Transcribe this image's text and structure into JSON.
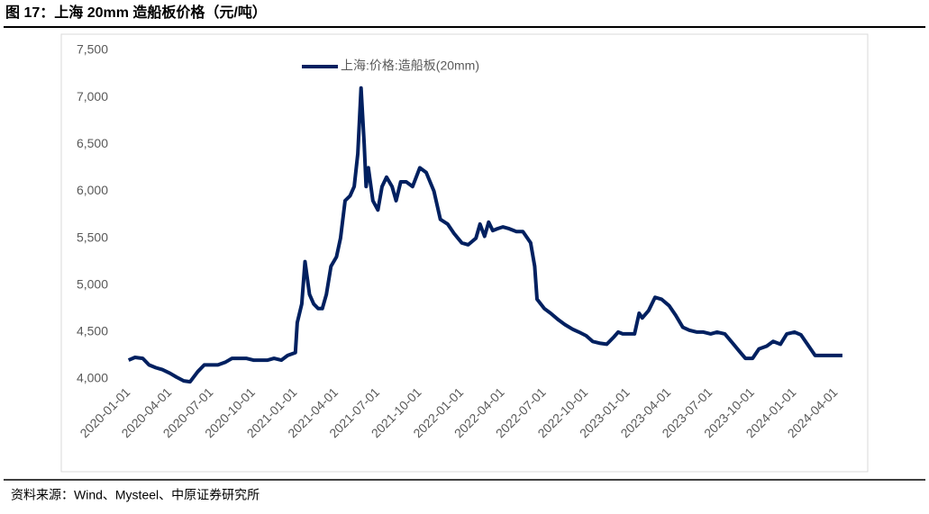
{
  "chart_data": {
    "type": "line",
    "title": "图 17：上海 20mm 造船板价格（元/吨）",
    "source": "资料来源：Wind、Mysteel、中原证券研究所",
    "x": [
      "2020-01-01",
      "2020-01-15",
      "2020-02-01",
      "2020-02-15",
      "2020-03-01",
      "2020-03-15",
      "2020-04-01",
      "2020-04-15",
      "2020-05-01",
      "2020-05-15",
      "2020-06-01",
      "2020-06-15",
      "2020-07-01",
      "2020-07-15",
      "2020-08-01",
      "2020-08-15",
      "2020-09-01",
      "2020-09-15",
      "2020-10-01",
      "2020-10-15",
      "2020-11-01",
      "2020-11-15",
      "2020-12-01",
      "2020-12-15",
      "2021-01-01",
      "2021-01-05",
      "2021-01-15",
      "2021-01-22",
      "2021-02-01",
      "2021-02-10",
      "2021-02-20",
      "2021-03-01",
      "2021-03-10",
      "2021-03-20",
      "2021-04-01",
      "2021-04-10",
      "2021-04-20",
      "2021-05-01",
      "2021-05-10",
      "2021-05-18",
      "2021-05-25",
      "2021-06-01",
      "2021-06-05",
      "2021-06-10",
      "2021-06-20",
      "2021-07-01",
      "2021-07-10",
      "2021-07-20",
      "2021-08-01",
      "2021-08-10",
      "2021-08-20",
      "2021-09-01",
      "2021-09-15",
      "2021-10-01",
      "2021-10-15",
      "2021-11-01",
      "2021-11-15",
      "2021-12-01",
      "2021-12-15",
      "2022-01-01",
      "2022-01-15",
      "2022-02-01",
      "2022-02-10",
      "2022-02-20",
      "2022-03-01",
      "2022-03-10",
      "2022-03-20",
      "2022-04-01",
      "2022-04-15",
      "2022-05-01",
      "2022-05-15",
      "2022-06-01",
      "2022-06-10",
      "2022-06-15",
      "2022-07-01",
      "2022-07-15",
      "2022-08-01",
      "2022-08-15",
      "2022-09-01",
      "2022-09-15",
      "2022-10-01",
      "2022-10-15",
      "2022-11-01",
      "2022-11-15",
      "2022-12-01",
      "2022-12-10",
      "2022-12-20",
      "2023-01-01",
      "2023-01-15",
      "2023-01-25",
      "2023-02-01",
      "2023-02-15",
      "2023-03-01",
      "2023-03-15",
      "2023-04-01",
      "2023-04-15",
      "2023-05-01",
      "2023-05-15",
      "2023-06-01",
      "2023-06-15",
      "2023-07-01",
      "2023-07-15",
      "2023-08-01",
      "2023-08-15",
      "2023-09-01",
      "2023-09-15",
      "2023-10-01",
      "2023-10-15",
      "2023-11-01",
      "2023-11-15",
      "2023-12-01",
      "2023-12-15",
      "2024-01-01",
      "2024-01-15",
      "2024-02-01",
      "2024-02-15",
      "2024-03-01",
      "2024-03-15",
      "2024-04-01",
      "2024-04-15"
    ],
    "series": [
      {
        "name": "上海:价格:造船板(20mm)",
        "color": "#002060",
        "values": [
          4200,
          4230,
          4220,
          4150,
          4120,
          4100,
          4060,
          4020,
          3980,
          3970,
          4080,
          4150,
          4150,
          4150,
          4180,
          4220,
          4220,
          4220,
          4200,
          4200,
          4200,
          4220,
          4200,
          4250,
          4280,
          4600,
          4800,
          5250,
          4900,
          4800,
          4750,
          4750,
          4900,
          5200,
          5300,
          5500,
          5900,
          5950,
          6050,
          6400,
          7100,
          6500,
          6050,
          6250,
          5900,
          5800,
          6050,
          6150,
          6050,
          5900,
          6100,
          6100,
          6050,
          6250,
          6200,
          6000,
          5700,
          5650,
          5550,
          5450,
          5430,
          5500,
          5650,
          5520,
          5670,
          5580,
          5600,
          5620,
          5600,
          5570,
          5570,
          5450,
          5200,
          4850,
          4750,
          4700,
          4630,
          4580,
          4530,
          4500,
          4460,
          4400,
          4380,
          4370,
          4450,
          4500,
          4480,
          4480,
          4480,
          4700,
          4650,
          4730,
          4870,
          4850,
          4780,
          4680,
          4550,
          4520,
          4500,
          4500,
          4480,
          4500,
          4480,
          4400,
          4300,
          4220,
          4220,
          4320,
          4350,
          4400,
          4370,
          4480,
          4500,
          4470,
          4350,
          4250,
          4250,
          4250,
          4250,
          4250
        ]
      }
    ],
    "xlim": [
      "2019-12-01",
      "2024-05-01"
    ],
    "xticks": [
      "2020-01-01",
      "2020-04-01",
      "2020-07-01",
      "2020-10-01",
      "2021-01-01",
      "2021-04-01",
      "2021-07-01",
      "2021-10-01",
      "2022-01-01",
      "2022-04-01",
      "2022-07-01",
      "2022-10-01",
      "2023-01-01",
      "2023-04-01",
      "2023-07-01",
      "2023-10-01",
      "2024-01-01",
      "2024-04-01"
    ],
    "ylim": [
      4000,
      7500
    ],
    "yticks": [
      {
        "value": 4000,
        "label": "4,000"
      },
      {
        "value": 4500,
        "label": "4,500"
      },
      {
        "value": 5000,
        "label": "5,000"
      },
      {
        "value": 5500,
        "label": "5,500"
      },
      {
        "value": 6000,
        "label": "6,000"
      },
      {
        "value": 6500,
        "label": "6,500"
      },
      {
        "value": 7000,
        "label": "7,000"
      },
      {
        "value": 7500,
        "label": "7,500"
      }
    ],
    "grid": false
  }
}
